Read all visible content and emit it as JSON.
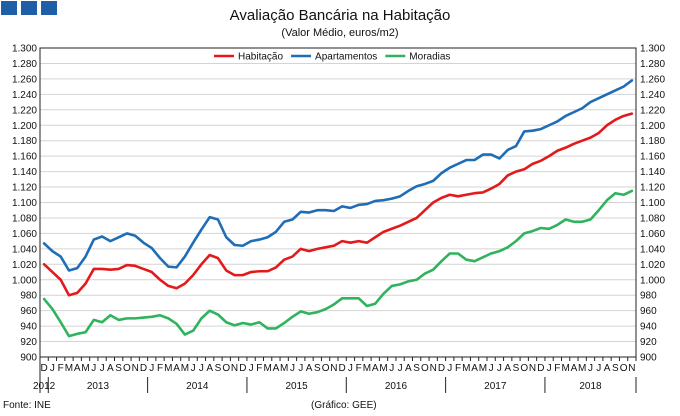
{
  "header": {
    "title": "Avaliação Bancária na Habitação",
    "subtitle": "(Valor Médio, euros/m2)"
  },
  "footer": {
    "source": "Fonte: INE",
    "credit": "(Gráfico: GEE)"
  },
  "chart_data": {
    "type": "line",
    "title": "Avaliação Bancária na Habitação",
    "subtitle": "(Valor Médio, euros/m2)",
    "ylim": [
      900,
      1300
    ],
    "yticks": [
      "900",
      "920",
      "940",
      "960",
      "980",
      "1.000",
      "1.020",
      "1.040",
      "1.060",
      "1.080",
      "1.100",
      "1.120",
      "1.140",
      "1.160",
      "1.180",
      "1.200",
      "1.220",
      "1.240",
      "1.260",
      "1.280",
      "1.300"
    ],
    "grid": true,
    "legend_position": "top",
    "month_labels": [
      "D",
      "J",
      "F",
      "M",
      "A",
      "M",
      "J",
      "J",
      "A",
      "S",
      "O",
      "N",
      "D",
      "J",
      "F",
      "M",
      "A",
      "M",
      "J",
      "J",
      "A",
      "S",
      "O",
      "N",
      "D",
      "J",
      "F",
      "M",
      "A",
      "M",
      "J",
      "J",
      "A",
      "S",
      "O",
      "N",
      "D",
      "J",
      "F",
      "M",
      "A",
      "M",
      "J",
      "J",
      "A",
      "S",
      "O",
      "N",
      "D",
      "J",
      "F",
      "M",
      "A",
      "M",
      "J",
      "J",
      "A",
      "S",
      "O",
      "N",
      "D",
      "J",
      "F",
      "M",
      "A",
      "M",
      "J",
      "J",
      "A",
      "S",
      "O",
      "N"
    ],
    "year_labels": [
      {
        "label": "2012",
        "start": 0,
        "end": 0
      },
      {
        "label": "2013",
        "start": 1,
        "end": 12
      },
      {
        "label": "2014",
        "start": 13,
        "end": 24
      },
      {
        "label": "2015",
        "start": 25,
        "end": 36
      },
      {
        "label": "2016",
        "start": 37,
        "end": 48
      },
      {
        "label": "2017",
        "start": 49,
        "end": 60
      },
      {
        "label": "2018",
        "start": 61,
        "end": 71
      }
    ],
    "series": [
      {
        "name": "Habitação",
        "color": "#e31a1c",
        "values": [
          1020,
          1010,
          1000,
          980,
          983,
          995,
          1014,
          1014,
          1013,
          1014,
          1019,
          1018,
          1014,
          1010,
          1000,
          992,
          989,
          995,
          1006,
          1020,
          1032,
          1028,
          1012,
          1006,
          1006,
          1010,
          1011,
          1011,
          1016,
          1026,
          1030,
          1040,
          1037,
          1040,
          1042,
          1044,
          1050,
          1048,
          1050,
          1048,
          1055,
          1062,
          1066,
          1070,
          1075,
          1080,
          1090,
          1100,
          1106,
          1110,
          1108,
          1110,
          1112,
          1113,
          1118,
          1124,
          1135,
          1140,
          1143,
          1150,
          1154,
          1160,
          1167,
          1171,
          1176,
          1180,
          1184,
          1190,
          1200,
          1207,
          1212,
          1215
        ]
      },
      {
        "name": "Apartamentos",
        "color": "#1f6db5",
        "values": [
          1047,
          1037,
          1030,
          1012,
          1015,
          1030,
          1052,
          1056,
          1050,
          1055,
          1060,
          1057,
          1048,
          1041,
          1028,
          1017,
          1016,
          1030,
          1048,
          1065,
          1081,
          1078,
          1055,
          1045,
          1044,
          1050,
          1052,
          1055,
          1062,
          1075,
          1078,
          1088,
          1087,
          1090,
          1090,
          1089,
          1095,
          1093,
          1097,
          1098,
          1102,
          1103,
          1105,
          1108,
          1115,
          1121,
          1124,
          1128,
          1138,
          1145,
          1150,
          1155,
          1155,
          1162,
          1162,
          1157,
          1168,
          1173,
          1192,
          1193,
          1195,
          1200,
          1205,
          1212,
          1217,
          1222,
          1230,
          1235,
          1240,
          1245,
          1250,
          1258
        ]
      },
      {
        "name": "Moradias",
        "color": "#2fb35c",
        "values": [
          975,
          962,
          945,
          927,
          930,
          932,
          948,
          945,
          954,
          948,
          950,
          950,
          951,
          952,
          954,
          950,
          943,
          929,
          934,
          950,
          960,
          955,
          945,
          941,
          944,
          942,
          945,
          937,
          937,
          944,
          952,
          959,
          956,
          958,
          962,
          968,
          976,
          976,
          976,
          966,
          969,
          982,
          992,
          994,
          998,
          1000,
          1008,
          1013,
          1024,
          1034,
          1034,
          1026,
          1024,
          1029,
          1034,
          1037,
          1042,
          1050,
          1060,
          1063,
          1067,
          1066,
          1071,
          1078,
          1075,
          1075,
          1078,
          1090,
          1103,
          1112,
          1110,
          1115
        ]
      }
    ]
  }
}
